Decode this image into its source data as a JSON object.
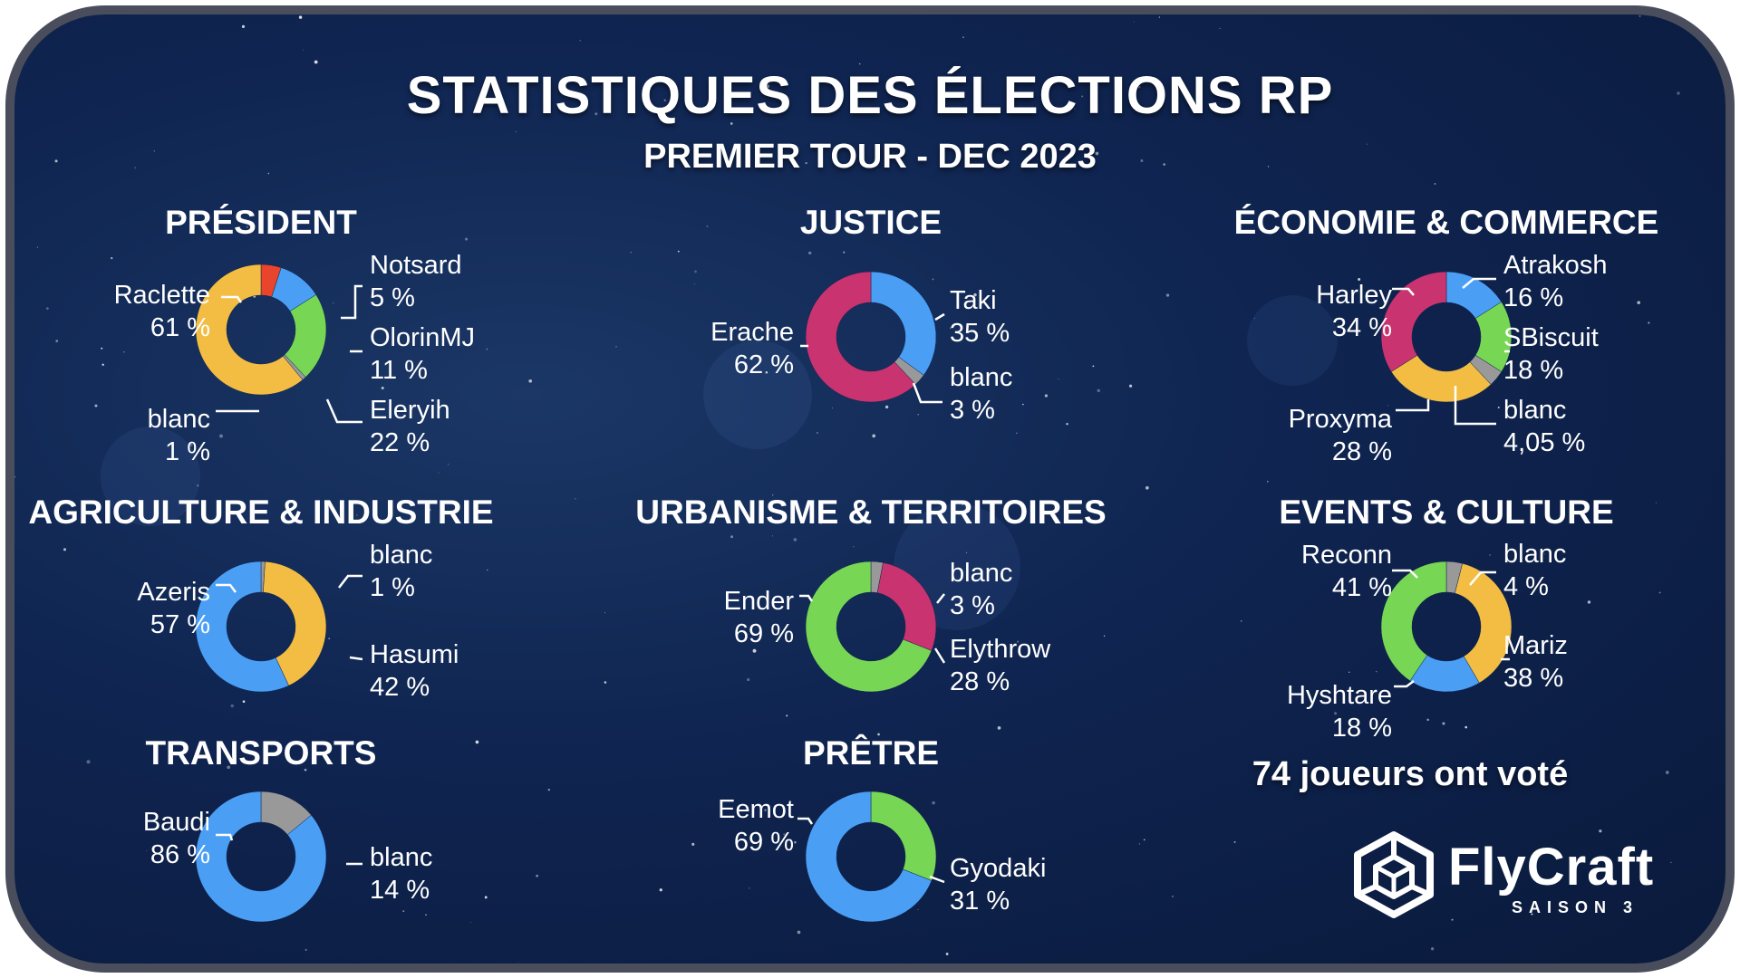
{
  "header": {
    "title": "STATISTIQUES DES ÉLECTIONS RP",
    "subtitle": "PREMIER TOUR - DEC 2023"
  },
  "footer": {
    "votes_text": "74 joueurs ont voté",
    "logo_name": "FlyCraft",
    "logo_season": "SAISON 3"
  },
  "colors": {
    "yellow": "#f2bd42",
    "red": "#e8452c",
    "blue": "#4a9ff5",
    "green": "#77d653",
    "gray": "#999999",
    "magenta": "#c9336f",
    "background": "#0f2450",
    "frame": "#4a4e5c"
  },
  "chart_data": [
    {
      "type": "pie",
      "title": "PRÉSIDENT",
      "slices": [
        {
          "name": "Notsard",
          "pct_text": "5 %",
          "value": 5,
          "color": "red"
        },
        {
          "name": "OlorinMJ",
          "pct_text": "11 %",
          "value": 11,
          "color": "blue"
        },
        {
          "name": "Eleryih",
          "pct_text": "22 %",
          "value": 22,
          "color": "green"
        },
        {
          "name": "blanc",
          "pct_text": "1 %",
          "value": 1,
          "color": "gray"
        },
        {
          "name": "Raclette",
          "pct_text": "61 %",
          "value": 61,
          "color": "yellow"
        }
      ]
    },
    {
      "type": "pie",
      "title": "JUSTICE",
      "slices": [
        {
          "name": "Taki",
          "pct_text": "35 %",
          "value": 35,
          "color": "blue"
        },
        {
          "name": "blanc",
          "pct_text": "3 %",
          "value": 3,
          "color": "gray"
        },
        {
          "name": "Erache",
          "pct_text": "62 %",
          "value": 62,
          "color": "magenta"
        }
      ]
    },
    {
      "type": "pie",
      "title": "ÉCONOMIE & COMMERCE",
      "slices": [
        {
          "name": "Atrakosh",
          "pct_text": "16 %",
          "value": 16,
          "color": "blue"
        },
        {
          "name": "SBiscuit",
          "pct_text": "18 %",
          "value": 18,
          "color": "green"
        },
        {
          "name": "blanc",
          "pct_text": "4,05 %",
          "value": 4.05,
          "color": "gray"
        },
        {
          "name": "Proxyma",
          "pct_text": "28 %",
          "value": 28,
          "color": "yellow"
        },
        {
          "name": "Harley",
          "pct_text": "34 %",
          "value": 34,
          "color": "magenta"
        }
      ]
    },
    {
      "type": "pie",
      "title": "AGRICULTURE & INDUSTRIE",
      "slices": [
        {
          "name": "blanc",
          "pct_text": "1 %",
          "value": 1,
          "color": "gray"
        },
        {
          "name": "Hasumi",
          "pct_text": "42 %",
          "value": 42,
          "color": "yellow"
        },
        {
          "name": "Azeris",
          "pct_text": "57 %",
          "value": 57,
          "color": "blue"
        }
      ]
    },
    {
      "type": "pie",
      "title": "URBANISME & TERRITOIRES",
      "slices": [
        {
          "name": "blanc",
          "pct_text": "3 %",
          "value": 3,
          "color": "gray"
        },
        {
          "name": "Elythrow",
          "pct_text": "28 %",
          "value": 28,
          "color": "magenta"
        },
        {
          "name": "Ender",
          "pct_text": "69 %",
          "value": 69,
          "color": "green"
        }
      ]
    },
    {
      "type": "pie",
      "title": "EVENTS & CULTURE",
      "slices": [
        {
          "name": "blanc",
          "pct_text": "4 %",
          "value": 4,
          "color": "gray"
        },
        {
          "name": "Mariz",
          "pct_text": "38 %",
          "value": 38,
          "color": "yellow"
        },
        {
          "name": "Hyshtare",
          "pct_text": "18 %",
          "value": 18,
          "color": "blue"
        },
        {
          "name": "Reconn",
          "pct_text": "41 %",
          "value": 41,
          "color": "green"
        }
      ]
    },
    {
      "type": "pie",
      "title": "TRANSPORTS",
      "slices": [
        {
          "name": "blanc",
          "pct_text": "14 %",
          "value": 14,
          "color": "gray"
        },
        {
          "name": "Baudi",
          "pct_text": "86 %",
          "value": 86,
          "color": "blue"
        }
      ]
    },
    {
      "type": "pie",
      "title": "PRÊTRE",
      "slices": [
        {
          "name": "Gyodaki",
          "pct_text": "31 %",
          "value": 31,
          "color": "green"
        },
        {
          "name": "Eemot",
          "pct_text": "69 %",
          "value": 69,
          "color": "blue"
        }
      ]
    }
  ]
}
